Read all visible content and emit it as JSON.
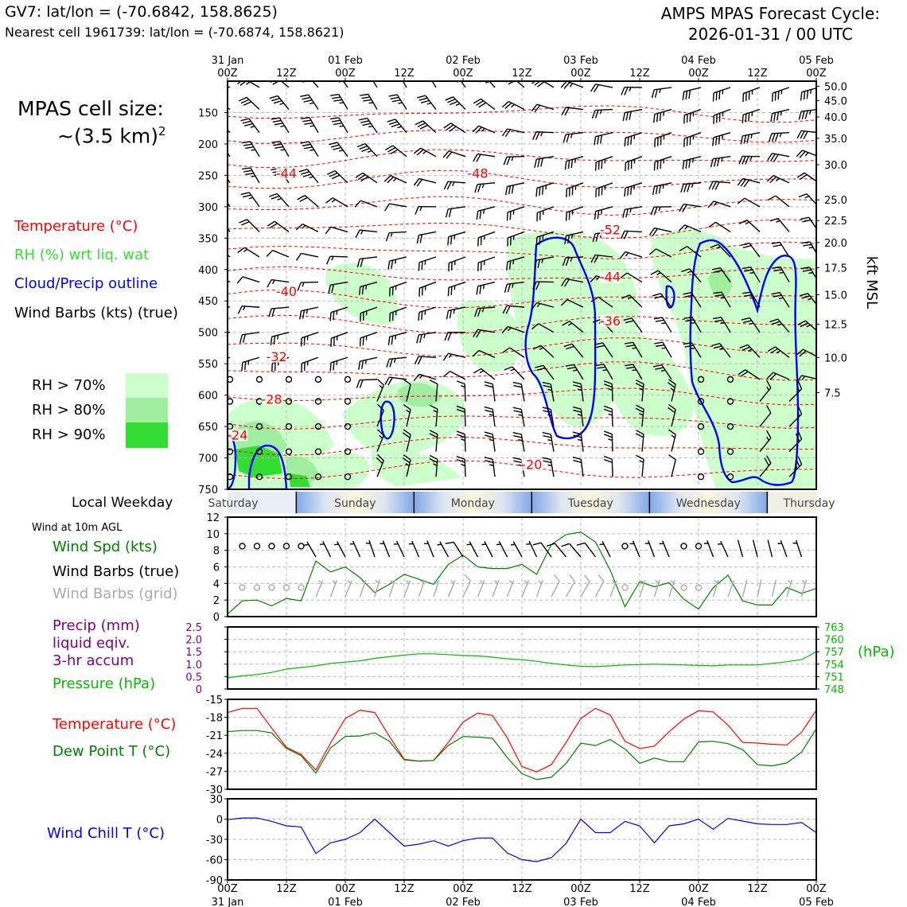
{
  "header": {
    "station_line": "GV7: lat/lon = (-70.6842, 158.8625)",
    "nearest_line": "Nearest cell 1961739: lat/lon = (-70.6874, 158.8621)",
    "cycle_line1": "AMPS MPAS Forecast Cycle:",
    "cycle_line2": "2026-01-31 / 00 UTC"
  },
  "cell_size": {
    "line1": "MPAS cell size:",
    "line2": "~(3.5 km)",
    "exponent": "2"
  },
  "legend": {
    "temperature": "Temperature (°C)",
    "rh": "RH (%) wrt liq. wat",
    "cloud": "Cloud/Precip outline",
    "wind": "Wind Barbs (kts) (true)",
    "rh70": "RH > 70%",
    "rh80": "RH > 80%",
    "rh90": "RH > 90%"
  },
  "colors": {
    "temperature": "#ff0000",
    "rh": "#33dd33",
    "cloud": "#0000ff",
    "rh70": "#ccffcc",
    "rh80": "#a0eea0",
    "rh90": "#33dd33",
    "precip": "#800080",
    "pressure": "#00bb00",
    "windspd": "#008000",
    "windgrid": "#aaaaaa",
    "dewpoint": "#008000",
    "windchill": "#0000ff"
  },
  "time_axis": {
    "top_ticks": [
      {
        "date": "31 Jan",
        "hour": "00Z"
      },
      {
        "date": "",
        "hour": "12Z"
      },
      {
        "date": "01 Feb",
        "hour": "00Z"
      },
      {
        "date": "",
        "hour": "12Z"
      },
      {
        "date": "02 Feb",
        "hour": "00Z"
      },
      {
        "date": "",
        "hour": "12Z"
      },
      {
        "date": "03 Feb",
        "hour": "00Z"
      },
      {
        "date": "",
        "hour": "12Z"
      },
      {
        "date": "04 Feb",
        "hour": "00Z"
      },
      {
        "date": "",
        "hour": "12Z"
      },
      {
        "date": "05 Feb",
        "hour": "00Z"
      }
    ]
  },
  "weekday_strip": {
    "label": "Local Weekday",
    "days": [
      "Saturday",
      "Sunday",
      "Monday",
      "Tuesday",
      "Wednesday",
      "Thursday"
    ]
  },
  "bottom_labels": {
    "wind_level": "Wind at 10m AGL",
    "wind_spd": "Wind Spd (kts)",
    "wind_barbs_true": "Wind Barbs (true)",
    "wind_barbs_grid": "Wind Barbs (grid)",
    "precip1": "Precip (mm)",
    "precip2": "liquid eqiv.",
    "precip3": "3-hr accum",
    "pressure": "Pressure (hPa)",
    "pressure_unit": "(hPa)",
    "temperature": "Temperature (°C)",
    "dewpoint": "Dew Point T (°C)",
    "windchill": "Wind Chill T (°C)"
  },
  "chart_data": [
    {
      "type": "heatmap",
      "name": "time-height cross section",
      "x_unit": "forecast hour",
      "xlim": [
        0,
        120
      ],
      "ylabel_right": "kft MSL",
      "ylim_hpa": [
        750,
        100
      ],
      "y_ticks_hpa": [
        150,
        200,
        250,
        300,
        350,
        400,
        450,
        500,
        550,
        600,
        650,
        700,
        750
      ],
      "y_ticks_kft": [
        "50.0",
        "45.0",
        "40.0",
        "35.0",
        "30.0",
        "25.0",
        "22.5",
        "20.0",
        "17.5",
        "15.0",
        "12.5",
        "10.0",
        "7.5"
      ],
      "y_ticks_kft_p": [
        108,
        131,
        157,
        191,
        233,
        289,
        322,
        357,
        397,
        440,
        487,
        540,
        596
      ],
      "temperature_isotherm_labels": [
        {
          "text": "-44",
          "t": 12,
          "p": 250
        },
        {
          "text": "-48",
          "t": 51,
          "p": 250
        },
        {
          "text": "-52",
          "t": 78,
          "p": 340
        },
        {
          "text": "-44",
          "t": 78,
          "p": 415
        },
        {
          "text": "-40",
          "t": 12,
          "p": 438
        },
        {
          "text": "-36",
          "t": 78,
          "p": 485
        },
        {
          "text": "-32",
          "t": 10,
          "p": 542
        },
        {
          "text": "-28",
          "t": 9,
          "p": 610
        },
        {
          "text": "-24",
          "t": 2,
          "p": 667
        },
        {
          "text": "-20",
          "t": 62,
          "p": 714
        }
      ]
    },
    {
      "type": "line",
      "name": "10m wind speed",
      "x": [
        0,
        3,
        6,
        9,
        12,
        15,
        18,
        21,
        24,
        27,
        30,
        33,
        36,
        39,
        42,
        45,
        48,
        51,
        54,
        57,
        60,
        63,
        66,
        69,
        72,
        75,
        78,
        81,
        84,
        87,
        90,
        93,
        96,
        99,
        102,
        105,
        108,
        111,
        114,
        117,
        120
      ],
      "series": [
        {
          "name": "Wind Spd (kts)",
          "values": [
            0.3,
            1.9,
            2.0,
            1.3,
            2.2,
            1.9,
            6.7,
            5.4,
            6.0,
            4.7,
            2.9,
            3.9,
            5.1,
            4.5,
            3.9,
            6.3,
            7.4,
            6.0,
            5.8,
            5.8,
            6.3,
            5.1,
            8.7,
            9.9,
            10.2,
            9.0,
            5.6,
            1.2,
            4.2,
            3.6,
            4.1,
            2.1,
            0.9,
            3.5,
            5.0,
            1.9,
            1.4,
            1.4,
            3.5,
            2.8,
            3.4
          ]
        }
      ],
      "ylim": [
        0,
        12
      ],
      "yticks": [
        0,
        2,
        4,
        6,
        8,
        10,
        12
      ]
    },
    {
      "type": "line",
      "name": "precip and pressure",
      "x": [
        0,
        3,
        6,
        9,
        12,
        15,
        18,
        21,
        24,
        27,
        30,
        33,
        36,
        39,
        42,
        45,
        48,
        51,
        54,
        57,
        60,
        63,
        66,
        69,
        72,
        75,
        78,
        81,
        84,
        87,
        90,
        93,
        96,
        99,
        102,
        105,
        108,
        111,
        114,
        117,
        120
      ],
      "series": [
        {
          "name": "Pressure (hPa)",
          "values": [
            750.7,
            751.2,
            751.5,
            752.0,
            752.8,
            753.2,
            753.6,
            754.2,
            754.5,
            754.8,
            755.4,
            755.8,
            756.2,
            756.5,
            756.5,
            756.3,
            756.1,
            756.0,
            755.7,
            755.3,
            755.1,
            754.7,
            754.2,
            753.8,
            753.5,
            753.4,
            753.6,
            753.8,
            753.9,
            754.0,
            753.9,
            753.8,
            753.7,
            753.6,
            753.8,
            753.8,
            753.8,
            754.2,
            754.6,
            755.1,
            757.0
          ]
        }
      ],
      "ylim_pressure": [
        748,
        763
      ],
      "yticks_pressure": [
        748,
        751,
        754,
        757,
        760,
        763
      ],
      "ylim_precip": [
        0,
        2.5
      ],
      "yticks_precip": [
        "0",
        "0.5",
        "1.0",
        "1.5",
        "2.0",
        "2.5"
      ]
    },
    {
      "type": "line",
      "name": "temperature and dew point",
      "x": [
        0,
        3,
        6,
        9,
        12,
        15,
        18,
        21,
        24,
        27,
        30,
        33,
        36,
        39,
        42,
        45,
        48,
        51,
        54,
        57,
        60,
        63,
        66,
        69,
        72,
        75,
        78,
        81,
        84,
        87,
        90,
        93,
        96,
        99,
        102,
        105,
        108,
        111,
        114,
        117,
        120
      ],
      "series": [
        {
          "name": "Temperature (°C)",
          "values": [
            -17.2,
            -16.5,
            -16.5,
            -19.8,
            -23.0,
            -24.2,
            -26.8,
            -22.3,
            -18.2,
            -16.8,
            -17.2,
            -21.2,
            -25.0,
            -25.3,
            -25.2,
            -22.2,
            -18.8,
            -17.3,
            -17.7,
            -21.4,
            -26.2,
            -27.1,
            -25.9,
            -22.2,
            -18.2,
            -16.5,
            -17.6,
            -22.0,
            -23.2,
            -22.8,
            -20.4,
            -18.3,
            -16.9,
            -17.1,
            -19.3,
            -22.2,
            -22.3,
            -22.5,
            -22.6,
            -20.5,
            -16.8
          ]
        },
        {
          "name": "Dew Point T (°C)",
          "values": [
            -20.4,
            -20.2,
            -20.2,
            -20.6,
            -23.2,
            -24.4,
            -27.3,
            -23.1,
            -21.2,
            -21.1,
            -20.6,
            -22.0,
            -25.1,
            -25.3,
            -25.2,
            -22.7,
            -21.2,
            -21.3,
            -21.5,
            -24.7,
            -27.4,
            -28.4,
            -28.0,
            -25.7,
            -22.3,
            -22.7,
            -21.7,
            -23.3,
            -25.7,
            -24.8,
            -25.4,
            -25.4,
            -22.1,
            -22.0,
            -22.4,
            -23.4,
            -25.9,
            -26.1,
            -25.6,
            -23.8,
            -19.9
          ]
        }
      ],
      "ylim": [
        -30,
        -15
      ],
      "yticks": [
        -15,
        -18,
        -21,
        -24,
        -27,
        -30
      ]
    },
    {
      "type": "line",
      "name": "wind chill",
      "x": [
        0,
        3,
        6,
        9,
        12,
        15,
        18,
        21,
        24,
        27,
        30,
        33,
        36,
        39,
        42,
        45,
        48,
        51,
        54,
        57,
        60,
        63,
        66,
        69,
        72,
        75,
        78,
        81,
        84,
        87,
        90,
        93,
        96,
        99,
        102,
        105,
        108,
        111,
        114,
        117,
        120
      ],
      "series": [
        {
          "name": "Wind Chill T (°C)",
          "values": [
            -0.9,
            1.7,
            1.7,
            -3.4,
            -10.0,
            -11.7,
            -51.0,
            -35.0,
            -30.0,
            -20.0,
            0.0,
            -20.0,
            -40.0,
            -37.0,
            -32.0,
            -40.0,
            -32.0,
            -28.0,
            -28.0,
            -50.0,
            -60.0,
            -63.0,
            -57.0,
            -36.0,
            0.0,
            -20.0,
            -20.0,
            -3.4,
            -10.0,
            -35.0,
            -10.0,
            -7.0,
            0.0,
            -15.0,
            1.0,
            -3.0,
            -7.0,
            -8.0,
            -8.0,
            -5.0,
            -20.0
          ]
        }
      ],
      "ylim": [
        -90,
        30
      ],
      "yticks": [
        30,
        0,
        -30,
        -60,
        -90
      ]
    }
  ]
}
